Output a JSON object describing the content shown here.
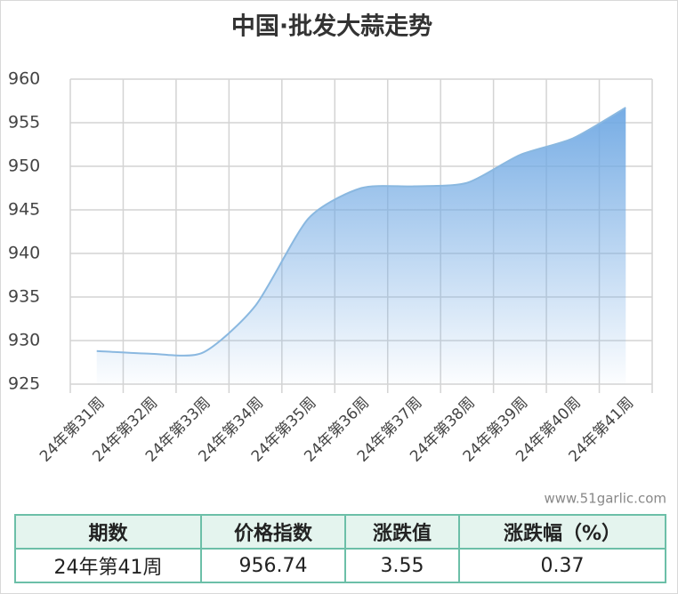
{
  "chart_data": {
    "type": "line",
    "title": "中国·批发大蒜走势",
    "categories": [
      "24年第31周",
      "24年第32周",
      "24年第33周",
      "24年第34周",
      "24年第35周",
      "24年第36周",
      "24年第37周",
      "24年第38周",
      "24年第39周",
      "24年第40周",
      "24年第41周"
    ],
    "values": [
      928.8,
      928.5,
      928.6,
      934,
      944,
      947.5,
      947.7,
      948.1,
      951.3,
      953.2,
      956.74
    ],
    "color": "#8ab8e0",
    "area_color": "#6fa8e3",
    "ylim": [
      925,
      960
    ],
    "yticks": [
      925,
      930,
      935,
      940,
      945,
      950,
      955,
      960
    ],
    "grid": true
  },
  "watermark": "www.51garlic.com",
  "table": {
    "header": [
      "期数",
      "价格指数",
      "涨跌值",
      "涨跌幅（%）"
    ],
    "rows": [
      [
        "24年第41周",
        "956.74",
        "3.55",
        "0.37"
      ]
    ]
  }
}
